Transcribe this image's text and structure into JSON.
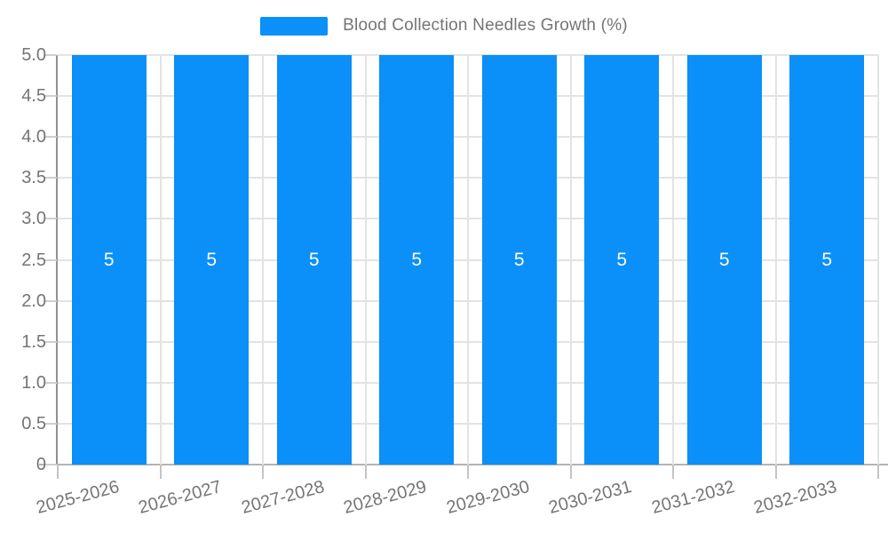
{
  "legend": {
    "label": "Blood Collection Needles Growth (%)"
  },
  "colors": {
    "bar": "#0a90f8",
    "grid": "#e3e3e3",
    "axis_y": "#909090",
    "axis_x": "#b3b3b3",
    "text": "#757575",
    "value_label": "#ffffff",
    "background": "#ffffff"
  },
  "chart_data": {
    "type": "bar",
    "title": "Blood Collection Needles Growth (%)",
    "categories": [
      "2025-2026",
      "2026-2027",
      "2027-2028",
      "2028-2029",
      "2029-2030",
      "2030-2031",
      "2031-2032",
      "2032-2033"
    ],
    "series": [
      {
        "name": "Blood Collection Needles Growth (%)",
        "values": [
          5,
          5,
          5,
          5,
          5,
          5,
          5,
          5
        ]
      }
    ],
    "value_labels": [
      "5",
      "5",
      "5",
      "5",
      "5",
      "5",
      "5",
      "5"
    ],
    "xlabel": "",
    "ylabel": "",
    "ylim": [
      0,
      5
    ],
    "ytick_labels": [
      "5.0",
      "4.5",
      "4.0",
      "3.5",
      "3.0",
      "2.5",
      "2.0",
      "1.5",
      "1.0",
      "0.5",
      "0"
    ],
    "ytick_values": [
      5.0,
      4.5,
      4.0,
      3.5,
      3.0,
      2.5,
      2.0,
      1.5,
      1.0,
      0.5,
      0
    ],
    "grid": true,
    "legend_position": "top",
    "x_label_rotation_deg": 15
  }
}
